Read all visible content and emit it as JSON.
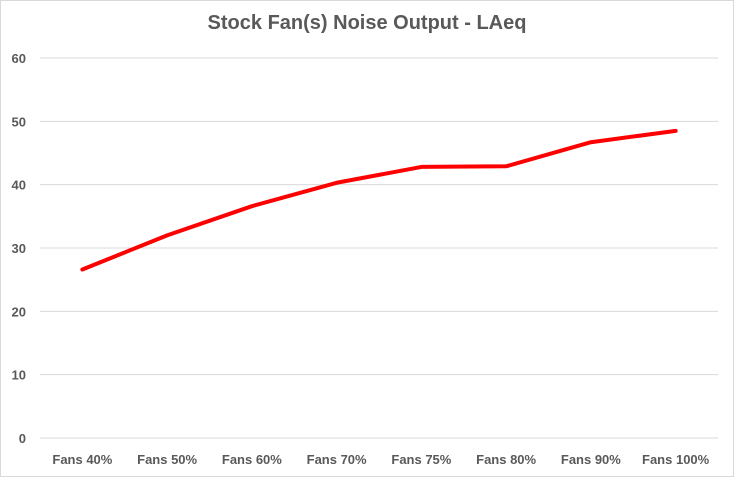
{
  "chart_data": {
    "type": "line",
    "title": "Stock Fan(s) Noise Output - LAeq",
    "xlabel": "",
    "ylabel": "",
    "categories": [
      "Fans 40%",
      "Fans 50%",
      "Fans 60%",
      "Fans 70%",
      "Fans 75%",
      "Fans 80%",
      "Fans 90%",
      "Fans 100%"
    ],
    "series": [
      {
        "values": [
          26.6,
          32.0,
          36.6,
          40.3,
          42.8,
          42.9,
          46.7,
          48.5
        ],
        "color": "#ff0000"
      }
    ],
    "ylim": [
      0,
      60
    ],
    "yticks": [
      0,
      10,
      20,
      30,
      40,
      50,
      60
    ],
    "grid": true,
    "legend": "none"
  }
}
